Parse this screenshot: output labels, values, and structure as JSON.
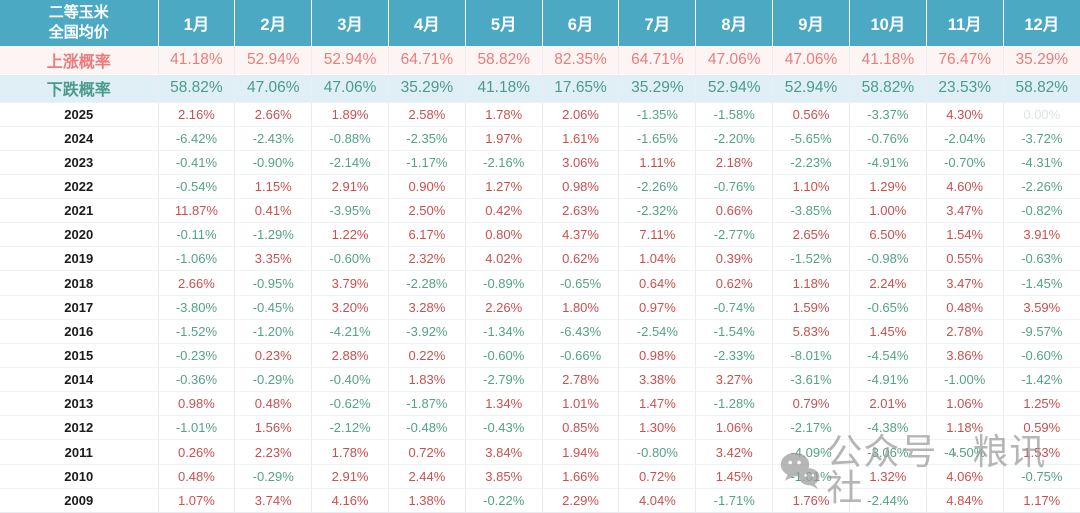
{
  "chart_data": {
    "type": "table",
    "title_line1": "二等玉米",
    "title_line2": "全国均价",
    "columns": [
      "1月",
      "2月",
      "3月",
      "4月",
      "5月",
      "6月",
      "7月",
      "8月",
      "9月",
      "10月",
      "11月",
      "12月"
    ],
    "rise_probability": {
      "label": "上涨概率",
      "values": [
        "41.18%",
        "52.94%",
        "52.94%",
        "64.71%",
        "58.82%",
        "82.35%",
        "64.71%",
        "47.06%",
        "47.06%",
        "41.18%",
        "76.47%",
        "35.29%"
      ]
    },
    "fall_probability": {
      "label": "下跌概率",
      "values": [
        "58.82%",
        "47.06%",
        "47.06%",
        "35.29%",
        "41.18%",
        "17.65%",
        "35.29%",
        "52.94%",
        "52.94%",
        "58.82%",
        "23.53%",
        "58.82%"
      ]
    },
    "years": [
      {
        "year": "2025",
        "values": [
          "2.16%",
          "2.66%",
          "1.89%",
          "2.58%",
          "1.78%",
          "2.06%",
          "-1.35%",
          "-1.58%",
          "0.56%",
          "-3.37%",
          "4.30%",
          "0.00%"
        ]
      },
      {
        "year": "2024",
        "values": [
          "-6.42%",
          "-2.43%",
          "-0.88%",
          "-2.35%",
          "1.97%",
          "1.61%",
          "-1.65%",
          "-2.20%",
          "-5.65%",
          "-0.76%",
          "-2.04%",
          "-3.72%"
        ]
      },
      {
        "year": "2023",
        "values": [
          "-0.41%",
          "-0.90%",
          "-2.14%",
          "-1.17%",
          "-2.16%",
          "3.06%",
          "1.11%",
          "2.18%",
          "-2.23%",
          "-4.91%",
          "-0.70%",
          "-4.31%"
        ]
      },
      {
        "year": "2022",
        "values": [
          "-0.54%",
          "1.15%",
          "2.91%",
          "0.90%",
          "1.27%",
          "0.98%",
          "-2.26%",
          "-0.76%",
          "1.10%",
          "1.29%",
          "4.60%",
          "-2.26%"
        ]
      },
      {
        "year": "2021",
        "values": [
          "11.87%",
          "0.41%",
          "-3.95%",
          "2.50%",
          "0.42%",
          "2.63%",
          "-2.32%",
          "0.66%",
          "-3.85%",
          "1.00%",
          "3.47%",
          "-0.82%"
        ]
      },
      {
        "year": "2020",
        "values": [
          "-0.11%",
          "-1.29%",
          "1.22%",
          "6.17%",
          "0.80%",
          "4.37%",
          "7.11%",
          "-2.77%",
          "2.65%",
          "6.50%",
          "1.54%",
          "3.91%"
        ]
      },
      {
        "year": "2019",
        "values": [
          "-1.06%",
          "3.35%",
          "-0.60%",
          "2.32%",
          "4.02%",
          "0.62%",
          "1.04%",
          "0.39%",
          "-1.52%",
          "-0.98%",
          "0.55%",
          "-0.63%"
        ]
      },
      {
        "year": "2018",
        "values": [
          "2.66%",
          "-0.95%",
          "3.79%",
          "-2.28%",
          "-0.89%",
          "-0.65%",
          "0.64%",
          "0.62%",
          "1.18%",
          "2.24%",
          "3.47%",
          "-1.45%"
        ]
      },
      {
        "year": "2017",
        "values": [
          "-3.80%",
          "-0.45%",
          "3.20%",
          "3.28%",
          "2.26%",
          "1.80%",
          "0.97%",
          "-0.74%",
          "1.59%",
          "-0.65%",
          "0.48%",
          "3.59%"
        ]
      },
      {
        "year": "2016",
        "values": [
          "-1.52%",
          "-1.20%",
          "-4.21%",
          "-3.92%",
          "-1.34%",
          "-6.43%",
          "-2.54%",
          "-1.54%",
          "5.83%",
          "1.45%",
          "2.78%",
          "-9.57%"
        ]
      },
      {
        "year": "2015",
        "values": [
          "-0.23%",
          "0.23%",
          "2.88%",
          "0.22%",
          "-0.60%",
          "-0.66%",
          "0.98%",
          "-2.33%",
          "-8.01%",
          "-4.54%",
          "3.86%",
          "-0.60%"
        ]
      },
      {
        "year": "2014",
        "values": [
          "-0.36%",
          "-0.29%",
          "-0.40%",
          "1.83%",
          "-2.79%",
          "2.78%",
          "3.38%",
          "3.27%",
          "-3.61%",
          "-4.91%",
          "-1.00%",
          "-1.42%"
        ]
      },
      {
        "year": "2013",
        "values": [
          "0.98%",
          "0.48%",
          "-0.62%",
          "-1.87%",
          "1.34%",
          "1.01%",
          "1.47%",
          "-1.28%",
          "0.79%",
          "2.01%",
          "1.06%",
          "1.25%"
        ]
      },
      {
        "year": "2012",
        "values": [
          "-1.01%",
          "1.56%",
          "-2.12%",
          "-0.48%",
          "-0.43%",
          "0.85%",
          "1.30%",
          "1.06%",
          "-2.17%",
          "-4.38%",
          "1.18%",
          "0.59%"
        ]
      },
      {
        "year": "2011",
        "values": [
          "0.26%",
          "2.23%",
          "1.78%",
          "0.72%",
          "3.84%",
          "1.94%",
          "-0.80%",
          "3.42%",
          "-4.09%",
          "-3.06%",
          "-4.50%",
          "1.53%"
        ]
      },
      {
        "year": "2010",
        "values": [
          "0.48%",
          "-0.29%",
          "2.91%",
          "2.44%",
          "3.85%",
          "1.66%",
          "0.72%",
          "1.45%",
          "-1.01%",
          "1.32%",
          "4.06%",
          "-0.75%"
        ]
      },
      {
        "year": "2009",
        "values": [
          "1.07%",
          "3.74%",
          "4.16%",
          "1.38%",
          "-0.22%",
          "2.29%",
          "4.04%",
          "-1.71%",
          "1.76%",
          "-2.44%",
          "4.84%",
          "1.17%"
        ]
      }
    ]
  },
  "watermark": {
    "text": "公众号 · 粮讯社",
    "icon": "wechat-icon"
  },
  "colors": {
    "header_bg": "#4BA9C4",
    "rise_text": "#EC7B7B",
    "fall_text": "#4A9B8C",
    "positive_value": "#C9504E",
    "negative_value": "#55A189",
    "muted_value": "#DFE2E4"
  }
}
